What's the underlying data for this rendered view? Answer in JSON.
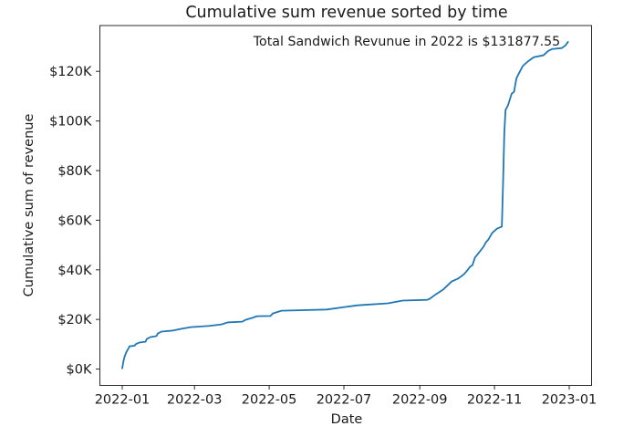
{
  "figure": {
    "background": "#ffffff"
  },
  "chart_data": {
    "type": "line",
    "title": "Cumulative sum revenue sorted by time",
    "annotation": "Total Sandwich Revunue in 2022 is $131877.55",
    "xlabel": "Date",
    "ylabel": "Cumulative sum of revenue",
    "legend": "none",
    "grid": false,
    "line_color": "#1f77b4",
    "axis_color": "#2b2b2b",
    "text_color": "#1a1a1a",
    "total_2022_revenue": 131877.55,
    "x_ticks": [
      {
        "date": "2022-01-01",
        "label": "2022-01"
      },
      {
        "date": "2022-03-01",
        "label": "2022-03"
      },
      {
        "date": "2022-05-01",
        "label": "2022-05"
      },
      {
        "date": "2022-07-01",
        "label": "2022-07"
      },
      {
        "date": "2022-09-01",
        "label": "2022-09"
      },
      {
        "date": "2022-11-01",
        "label": "2022-11"
      },
      {
        "date": "2023-01-01",
        "label": "2023-01"
      }
    ],
    "y_ticks": [
      {
        "value": 0,
        "label": "$0K"
      },
      {
        "value": 20000,
        "label": "$20K"
      },
      {
        "value": 40000,
        "label": "$40K"
      },
      {
        "value": 60000,
        "label": "$60K"
      },
      {
        "value": 80000,
        "label": "$80K"
      },
      {
        "value": 100000,
        "label": "$100K"
      },
      {
        "value": 120000,
        "label": "$120K"
      }
    ],
    "xlim_days_from_2022_01_01": [
      -18.25,
      383.25
    ],
    "ylim": [
      -6594,
      138472
    ],
    "series": [
      {
        "name": "cumulative-sum-revenue",
        "points": [
          [
            "2022-01-01",
            300
          ],
          [
            "2022-01-02",
            3200
          ],
          [
            "2022-01-03",
            5100
          ],
          [
            "2022-01-04",
            6400
          ],
          [
            "2022-01-05",
            7400
          ],
          [
            "2022-01-06",
            8200
          ],
          [
            "2022-01-07",
            9200
          ],
          [
            "2022-01-11",
            9400
          ],
          [
            "2022-01-12",
            10000
          ],
          [
            "2022-01-15",
            10700
          ],
          [
            "2022-01-20",
            11000
          ],
          [
            "2022-01-21",
            12100
          ],
          [
            "2022-01-24",
            12900
          ],
          [
            "2022-01-29",
            13300
          ],
          [
            "2022-01-30",
            14300
          ],
          [
            "2022-02-02",
            15100
          ],
          [
            "2022-02-11",
            15500
          ],
          [
            "2022-02-19",
            16300
          ],
          [
            "2022-02-26",
            16900
          ],
          [
            "2022-03-13",
            17400
          ],
          [
            "2022-03-23",
            18000
          ],
          [
            "2022-03-28",
            18800
          ],
          [
            "2022-04-09",
            19100
          ],
          [
            "2022-04-12",
            19900
          ],
          [
            "2022-04-17",
            20600
          ],
          [
            "2022-04-21",
            21300
          ],
          [
            "2022-05-02",
            21400
          ],
          [
            "2022-05-04",
            22400
          ],
          [
            "2022-05-09",
            23200
          ],
          [
            "2022-05-11",
            23500
          ],
          [
            "2022-06-17",
            24000
          ],
          [
            "2022-07-12",
            25700
          ],
          [
            "2022-08-06",
            26500
          ],
          [
            "2022-08-18",
            27600
          ],
          [
            "2022-09-07",
            27900
          ],
          [
            "2022-09-09",
            28300
          ],
          [
            "2022-09-14",
            30100
          ],
          [
            "2022-09-20",
            32000
          ],
          [
            "2022-09-27",
            35300
          ],
          [
            "2022-10-02",
            36400
          ],
          [
            "2022-10-04",
            37100
          ],
          [
            "2022-10-07",
            38200
          ],
          [
            "2022-10-09",
            39300
          ],
          [
            "2022-10-12",
            41200
          ],
          [
            "2022-10-14",
            41900
          ],
          [
            "2022-10-16",
            44900
          ],
          [
            "2022-10-20",
            47400
          ],
          [
            "2022-10-23",
            49300
          ],
          [
            "2022-10-25",
            51100
          ],
          [
            "2022-10-27",
            52200
          ],
          [
            "2022-10-30",
            54800
          ],
          [
            "2022-11-03",
            56600
          ],
          [
            "2022-11-07",
            57400
          ],
          [
            "2022-11-08",
            75000
          ],
          [
            "2022-11-09",
            95000
          ],
          [
            "2022-11-10",
            104400
          ],
          [
            "2022-11-12",
            106300
          ],
          [
            "2022-11-15",
            111000
          ],
          [
            "2022-11-17",
            111800
          ],
          [
            "2022-11-18",
            114700
          ],
          [
            "2022-11-19",
            117300
          ],
          [
            "2022-11-22",
            120200
          ],
          [
            "2022-11-24",
            122100
          ],
          [
            "2022-11-28",
            123900
          ],
          [
            "2022-12-03",
            125700
          ],
          [
            "2022-12-11",
            126500
          ],
          [
            "2022-12-15",
            128300
          ],
          [
            "2022-12-18",
            129000
          ],
          [
            "2022-12-26",
            129400
          ],
          [
            "2022-12-29",
            130500
          ],
          [
            "2022-12-31",
            131877.55
          ]
        ]
      }
    ]
  }
}
